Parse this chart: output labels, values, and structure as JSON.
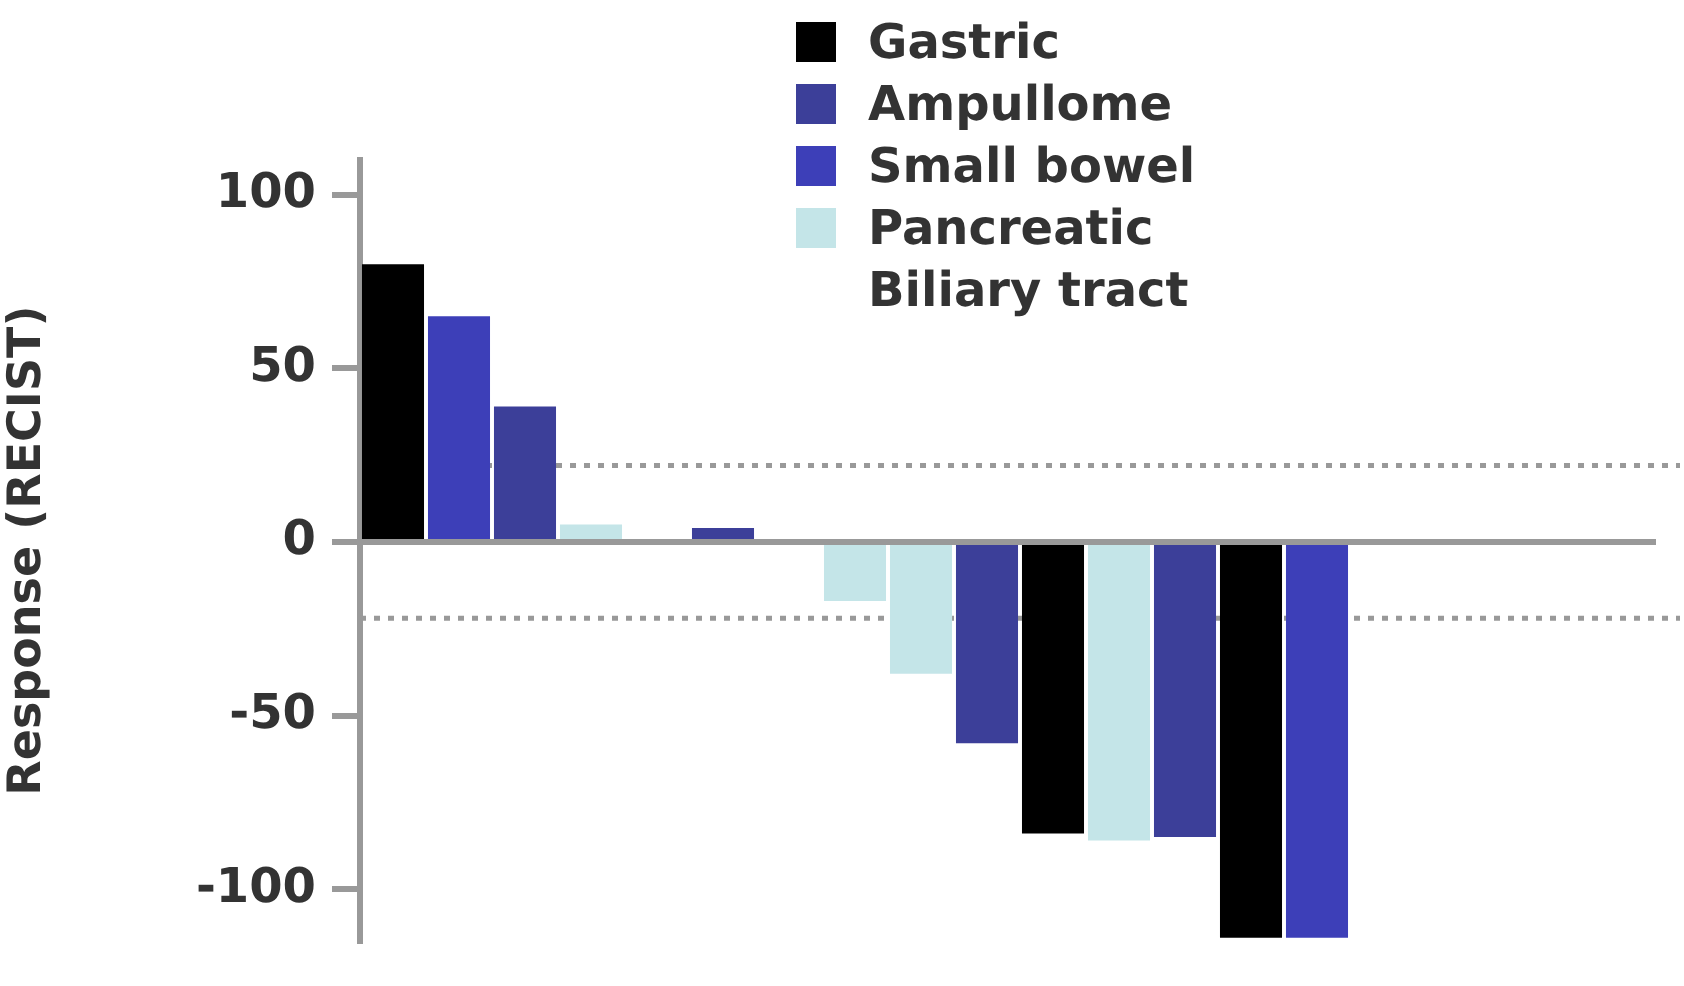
{
  "chart_data": {
    "type": "bar",
    "grid": false,
    "ylabel": "Response (RECIST)",
    "categories": [
      null,
      null,
      null,
      null,
      null,
      null,
      null,
      null,
      null,
      null,
      null,
      null,
      null,
      null,
      null,
      null,
      null,
      null,
      null,
      null
    ],
    "series": [
      {
        "name": "Gastric",
        "color": "#000000",
        "values": [
          80,
          null,
          null,
          null,
          null,
          null,
          null,
          null,
          null,
          null,
          -84,
          null,
          null,
          -114,
          null,
          null,
          null,
          null,
          null,
          null
        ]
      },
      {
        "name": "Ampullome",
        "color": "#3c3f99",
        "values": [
          null,
          null,
          39,
          null,
          null,
          4,
          null,
          null,
          null,
          -58,
          null,
          null,
          -85,
          null,
          null,
          null,
          null,
          null,
          null,
          null
        ]
      },
      {
        "name": "Small bowel",
        "color": "#3d3fb8",
        "values": [
          null,
          65,
          null,
          null,
          null,
          null,
          null,
          null,
          null,
          null,
          null,
          null,
          null,
          null,
          -114,
          null,
          null,
          null,
          null,
          null
        ]
      },
      {
        "name": "Pancreatic Biliary tract",
        "color": "#c4e5e8",
        "values": [
          null,
          null,
          null,
          5,
          null,
          null,
          null,
          -17,
          -38,
          null,
          null,
          -86,
          null,
          null,
          null,
          null,
          null,
          null,
          null,
          null
        ]
      }
    ],
    "ylim": [
      -115,
      110
    ],
    "yticks": [
      -100,
      -50,
      0,
      50,
      100
    ],
    "ref_lines": [
      {
        "axis": "y",
        "value": 0,
        "color": "#999999",
        "line_style": "solid"
      },
      {
        "axis": "y",
        "value": 22,
        "color": "#999999",
        "line_style": "dotted"
      },
      {
        "axis": "y",
        "value": -22,
        "color": "#999999",
        "line_style": "dotted"
      }
    ],
    "legend": "top"
  }
}
